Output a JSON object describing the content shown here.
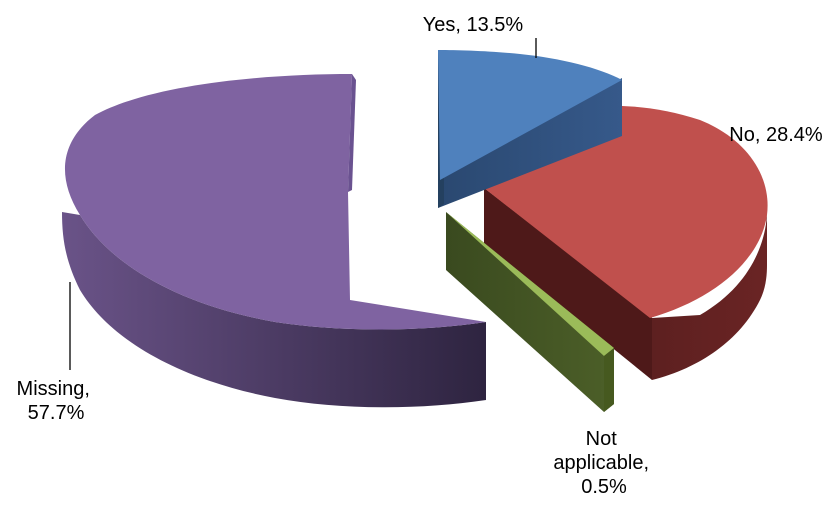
{
  "chart_data": {
    "type": "pie",
    "title": "",
    "style": "3d-exploded",
    "slices": [
      {
        "name": "Yes",
        "value": 13.5,
        "label": "Yes, 13.5%",
        "label_lines": [
          "Yes, 13.5%"
        ],
        "color": "#4f81bd",
        "side_color": "#2c4c74"
      },
      {
        "name": "No",
        "value": 28.4,
        "label": "No, 28.4%",
        "label_lines": [
          "No, 28.4%"
        ],
        "color": "#c0504d",
        "side_color": "#5a1f1f"
      },
      {
        "name": "Not applicable",
        "value": 0.5,
        "label": "Not applicable, 0.5%",
        "label_lines": [
          "Not",
          "applicable,",
          "0.5%"
        ],
        "color": "#9bbb59",
        "side_color": "#3f4f22"
      },
      {
        "name": "Missing",
        "value": 57.7,
        "label": "Missing, 57.7%",
        "label_lines": [
          "Missing,",
          "57.7%"
        ],
        "color": "#8064a2",
        "side_color": "#3d2f52"
      }
    ],
    "legend": "none"
  }
}
